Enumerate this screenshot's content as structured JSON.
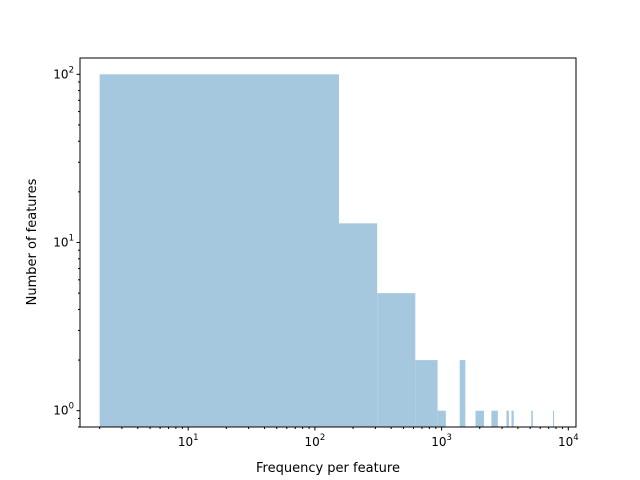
{
  "chart_data": {
    "type": "bar",
    "title": "",
    "xlabel": "Frequency per feature",
    "ylabel": "Number of features",
    "xscale": "log",
    "yscale": "log",
    "xlim": [
      1.4,
      11500
    ],
    "ylim": [
      0.8,
      125
    ],
    "grid": false,
    "legend": "none",
    "color": "#a6c8df",
    "x_ticks": [
      {
        "value": 10,
        "base": "10",
        "exp": "1"
      },
      {
        "value": 100,
        "base": "10",
        "exp": "2"
      },
      {
        "value": 1000,
        "base": "10",
        "exp": "3"
      },
      {
        "value": 10000,
        "base": "10",
        "exp": "4"
      }
    ],
    "y_ticks": [
      {
        "value": 1,
        "base": "10",
        "exp": "0"
      },
      {
        "value": 10,
        "base": "10",
        "exp": "1"
      },
      {
        "value": 100,
        "base": "10",
        "exp": "2"
      }
    ],
    "bins": [
      {
        "x0": 2,
        "x1": 155,
        "count": 100
      },
      {
        "x0": 155,
        "x1": 310,
        "count": 13
      },
      {
        "x0": 310,
        "x1": 620,
        "count": 5
      },
      {
        "x0": 620,
        "x1": 930,
        "count": 2
      },
      {
        "x0": 930,
        "x1": 1080,
        "count": 1
      },
      {
        "x0": 1390,
        "x1": 1540,
        "count": 2
      },
      {
        "x0": 1850,
        "x1": 2160,
        "count": 1
      },
      {
        "x0": 2470,
        "x1": 2780,
        "count": 1
      },
      {
        "x0": 3250,
        "x1": 3400,
        "count": 1
      },
      {
        "x0": 3560,
        "x1": 3710,
        "count": 1
      },
      {
        "x0": 5100,
        "x1": 5250,
        "count": 1
      },
      {
        "x0": 7570,
        "x1": 7720,
        "count": 1
      }
    ]
  }
}
